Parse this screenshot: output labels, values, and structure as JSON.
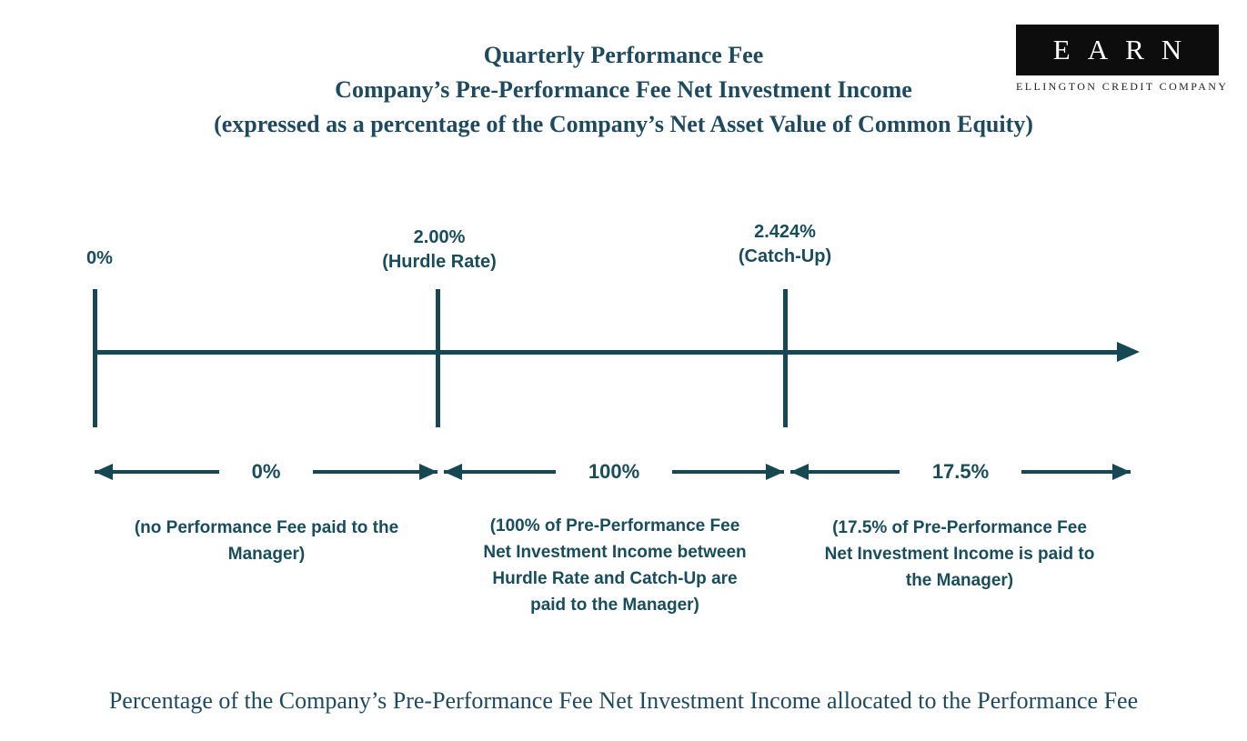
{
  "header": {
    "title_lines": [
      "Quarterly Performance Fee",
      "Company’s Pre-Performance Fee Net Investment Income",
      "(expressed as a percentage of the Company’s Net Asset Value of Common Equity)"
    ]
  },
  "logo": {
    "acronym": "EARN",
    "company": "ELLINGTON CREDIT COMPANY"
  },
  "axis": {
    "tick_labels": [
      {
        "value": "0%",
        "sublabel": ""
      },
      {
        "value": "2.00%",
        "sublabel": "(Hurdle Rate)"
      },
      {
        "value": "2.424%",
        "sublabel": "(Catch-Up)"
      }
    ]
  },
  "segments": [
    {
      "rate": "0%",
      "description": "(no Performance Fee paid to the\nManager)"
    },
    {
      "rate": "100%",
      "description": "(100% of Pre-Performance Fee\nNet Investment Income between\nHurdle Rate and Catch-Up are\npaid to the Manager)"
    },
    {
      "rate": "17.5%",
      "description": "(17.5% of Pre-Performance Fee\nNet Investment Income is paid to\nthe Manager)"
    }
  ],
  "footer": {
    "caption": "Percentage of the Company’s Pre-Performance Fee Net Investment Income allocated to the Performance Fee"
  },
  "colors": {
    "ink_serif": "#1e4a5f",
    "ink_sans": "#184d5c",
    "line": "#164853",
    "logo_bg": "#0d0d0d",
    "logo_fg": "#ffffff",
    "tagline": "#1f1f1f"
  }
}
